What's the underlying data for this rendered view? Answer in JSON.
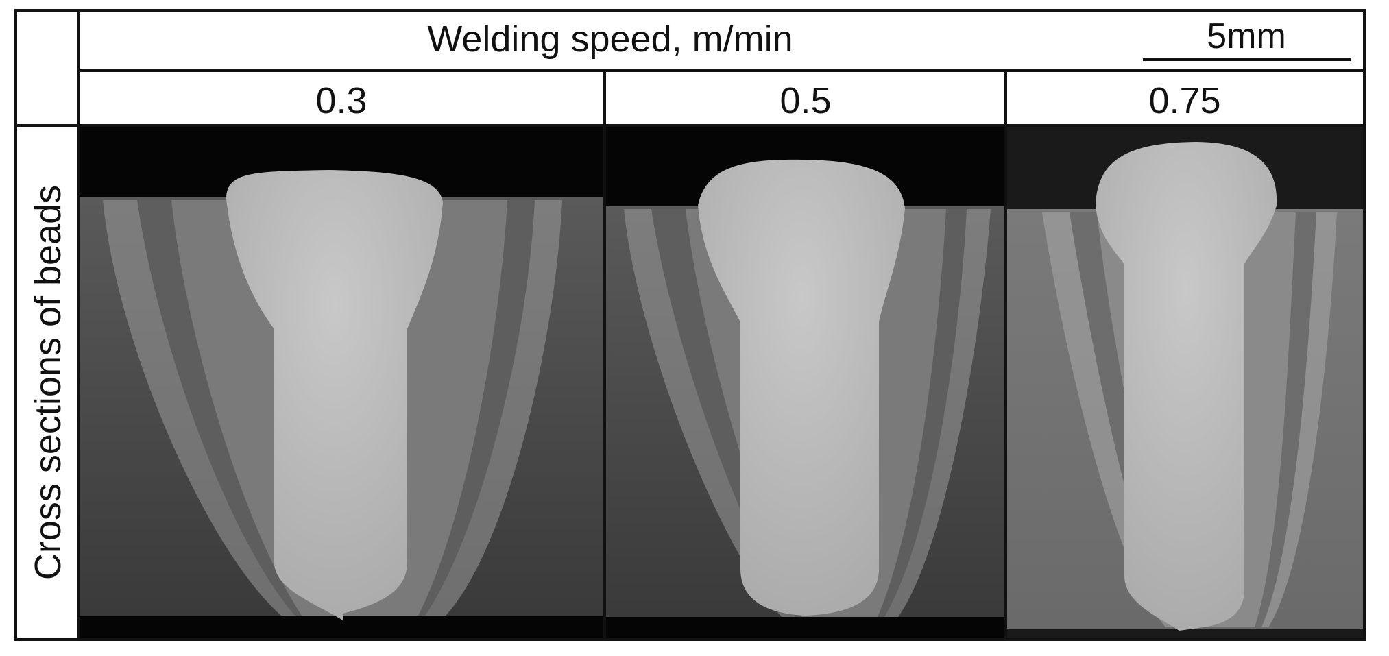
{
  "header": {
    "title": "Welding speed, m/min",
    "scale_bar": "5mm"
  },
  "columns": [
    "0.3",
    "0.5",
    "0.75"
  ],
  "row_label": "Cross sections of beads"
}
